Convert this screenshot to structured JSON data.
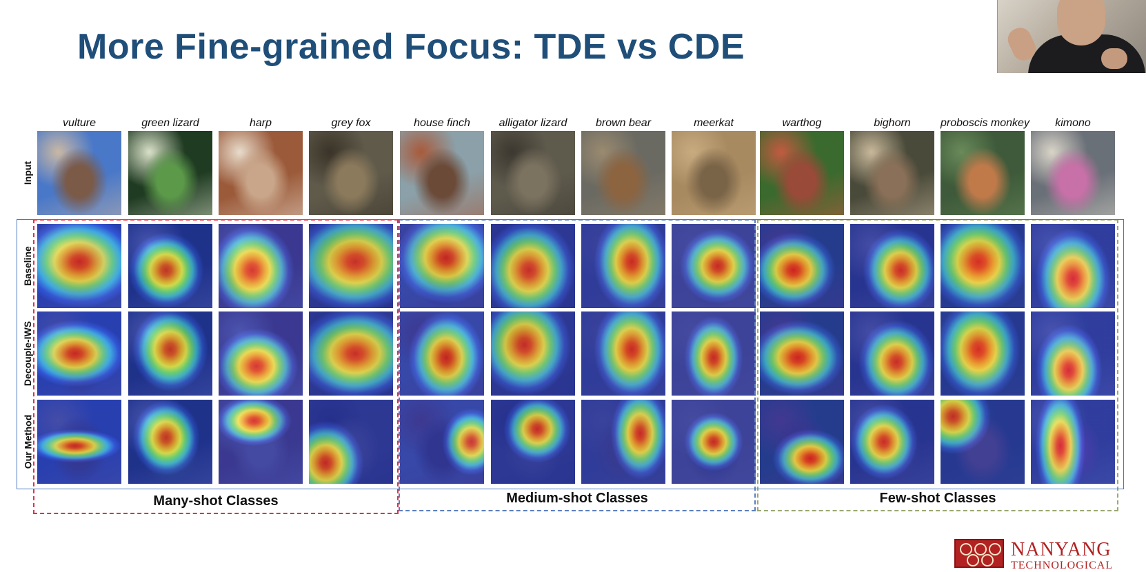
{
  "slide": {
    "title": "More Fine-grained Focus: TDE vs CDE"
  },
  "figure": {
    "columns": [
      "vulture",
      "green lizard",
      "harp",
      "grey fox",
      "house finch",
      "alligator lizard",
      "brown bear",
      "meerkat",
      "warthog",
      "bighorn",
      "proboscis monkey",
      "kimono"
    ],
    "rows": [
      "Input",
      "Baseline",
      "Decouple-IWS",
      "Our Method"
    ],
    "groups": [
      {
        "label": "Many-shot Classes",
        "color": "#e0304a"
      },
      {
        "label": "Medium-shot Classes",
        "color": "#5b7fbf"
      },
      {
        "label": "Few-shot Classes",
        "color": "#9aa872"
      }
    ],
    "photo_palette": [
      {
        "bg": "#4a78c8",
        "fg": "#7b5a48",
        "accent": "#c9b8a5"
      },
      {
        "bg": "#1f3b22",
        "fg": "#5c9a4a",
        "accent": "#d9e0c8"
      },
      {
        "bg": "#9b5a3a",
        "fg": "#c9a68a",
        "accent": "#e8dccb"
      },
      {
        "bg": "#5f5a4a",
        "fg": "#8c7a5c",
        "accent": "#3a3328"
      },
      {
        "bg": "#8ba0a8",
        "fg": "#6b4a38",
        "accent": "#a85a3a"
      },
      {
        "bg": "#5e5a4c",
        "fg": "#7c7260",
        "accent": "#3c3830"
      },
      {
        "bg": "#6b6a62",
        "fg": "#8c6440",
        "accent": "#9a8a70"
      },
      {
        "bg": "#a88a60",
        "fg": "#7a6448",
        "accent": "#c8ac80"
      },
      {
        "bg": "#3b6a2e",
        "fg": "#9a4a38",
        "accent": "#c25a40"
      },
      {
        "bg": "#4a4a3a",
        "fg": "#8a7058",
        "accent": "#c8b89a"
      },
      {
        "bg": "#3e5a3a",
        "fg": "#c07a4a",
        "accent": "#6a8a5a"
      },
      {
        "bg": "#6a7078",
        "fg": "#c870a8",
        "accent": "#d9d4c8"
      }
    ]
  },
  "logo": {
    "line1": "NANYANG",
    "line2": "TECHNOLOGICAL"
  }
}
